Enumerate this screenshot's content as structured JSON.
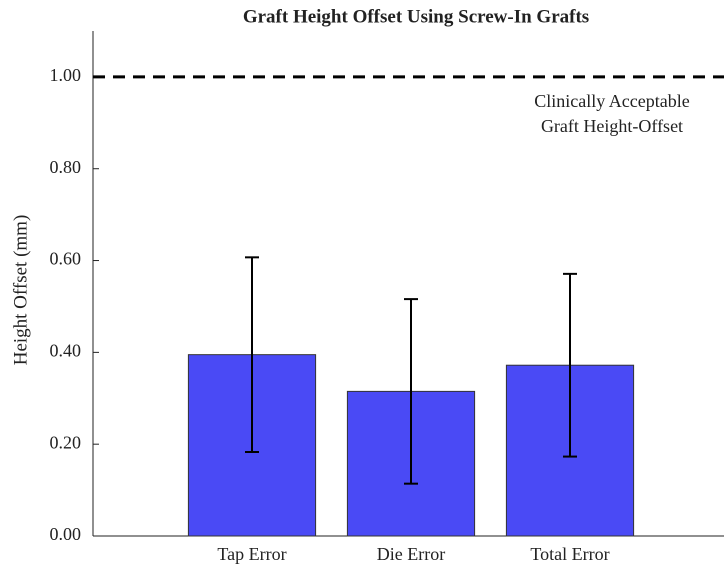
{
  "chart_data": {
    "type": "bar",
    "title": "Graft Height Offset Using Screw-In Grafts",
    "y_label": "Height Offset (mm)",
    "categories": [
      "Tap Error",
      "Die Error",
      "Total Error"
    ],
    "values": [
      0.395,
      0.315,
      0.372
    ],
    "errors": [
      0.212,
      0.201,
      0.199
    ],
    "color": "#4a4af5",
    "ylim": [
      0,
      1.1
    ],
    "yticks": [
      {
        "value": 0,
        "label": "0.00"
      },
      {
        "value": 0.2,
        "label": "0.20"
      },
      {
        "value": 0.4,
        "label": "0.40"
      },
      {
        "value": 0.6,
        "label": "0.60"
      },
      {
        "value": 0.8,
        "label": "0.80"
      },
      {
        "value": 1,
        "label": "1.00"
      }
    ],
    "reference_line": {
      "value": 1,
      "label": [
        "Clinically Acceptable",
        "Graft Height-Offset"
      ]
    }
  }
}
